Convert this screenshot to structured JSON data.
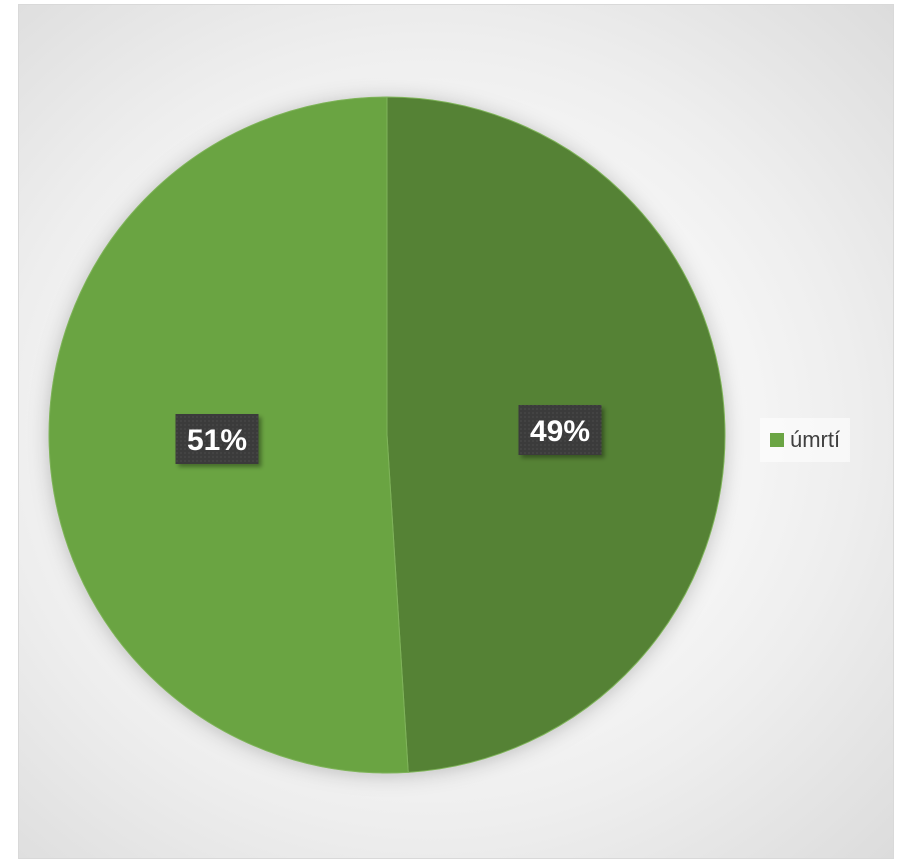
{
  "chart_data": {
    "type": "pie",
    "title": "",
    "slices": [
      {
        "label": "",
        "value": 49,
        "display": "49%",
        "color": "#548235"
      },
      {
        "label": "",
        "value": 51,
        "display": "51%",
        "color": "#6aa443"
      }
    ],
    "legend": {
      "position": "right",
      "entries": [
        {
          "label": "úmrtí",
          "color": "#6aa443"
        }
      ]
    },
    "data_label_style": {
      "background": "#3a3a3a",
      "text_color": "#ffffff"
    }
  }
}
